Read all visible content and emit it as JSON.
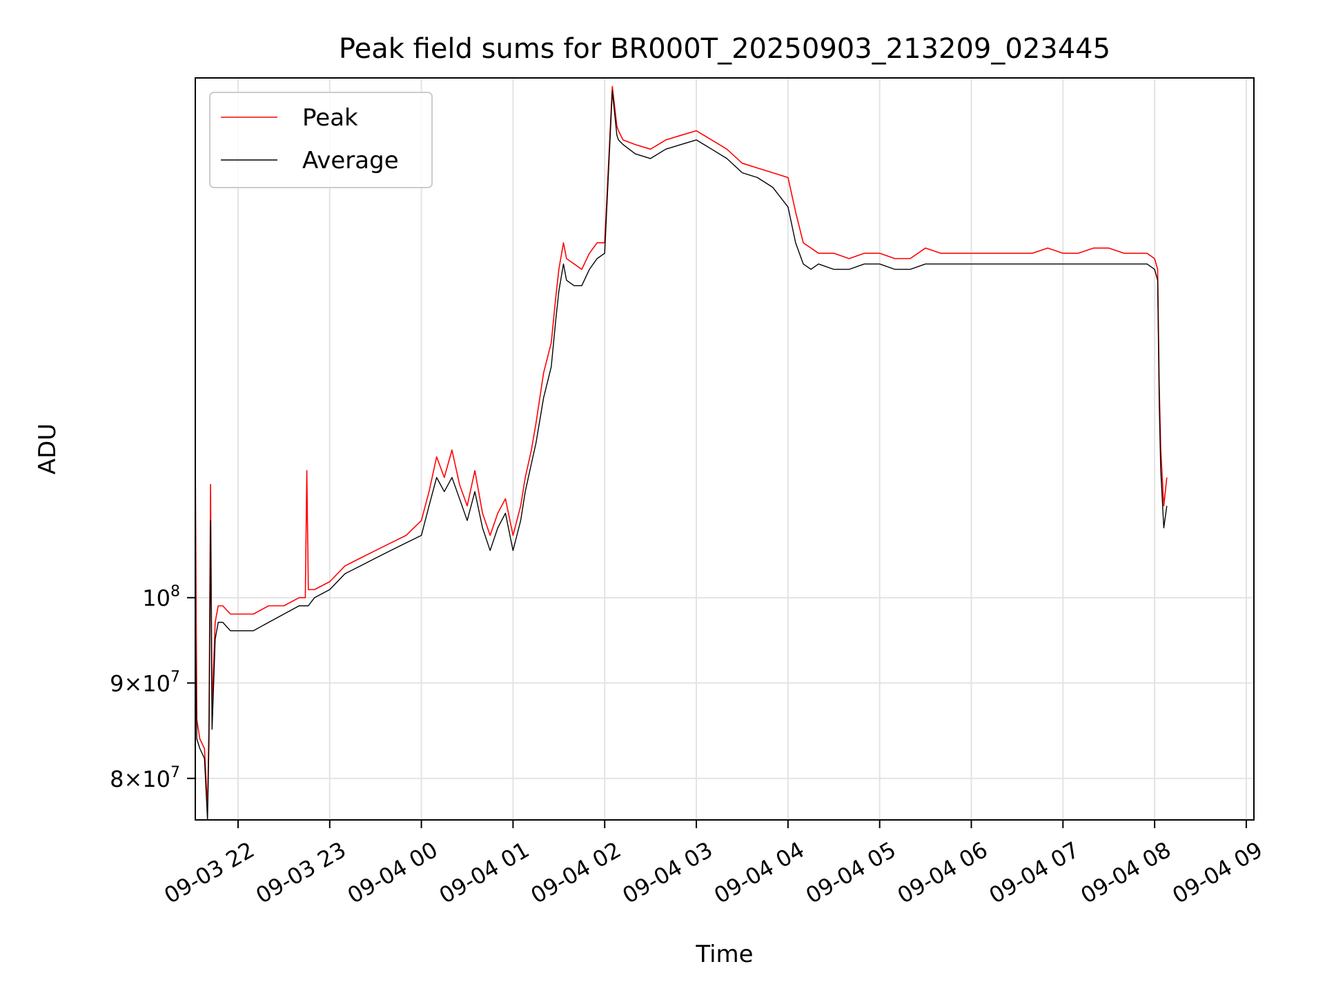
{
  "chart_data": {
    "type": "line",
    "title": "Peak field sums for BR000T_20250903_213209_023445",
    "xlabel": "Time",
    "ylabel": "ADU",
    "yscale": "log",
    "ylim": [
      76000000,
      190000000
    ],
    "xlim": [
      "2025-09-03 21:32",
      "2025-09-04 09:05"
    ],
    "grid": true,
    "legend_position": "top-left",
    "xticks": [
      {
        "t": "2025-09-03 22:00",
        "label": "09-03 22"
      },
      {
        "t": "2025-09-03 23:00",
        "label": "09-03 23"
      },
      {
        "t": "2025-09-04 00:00",
        "label": "09-04 00"
      },
      {
        "t": "2025-09-04 01:00",
        "label": "09-04 01"
      },
      {
        "t": "2025-09-04 02:00",
        "label": "09-04 02"
      },
      {
        "t": "2025-09-04 03:00",
        "label": "09-04 03"
      },
      {
        "t": "2025-09-04 04:00",
        "label": "09-04 04"
      },
      {
        "t": "2025-09-04 05:00",
        "label": "09-04 05"
      },
      {
        "t": "2025-09-04 06:00",
        "label": "09-04 06"
      },
      {
        "t": "2025-09-04 07:00",
        "label": "09-04 07"
      },
      {
        "t": "2025-09-04 08:00",
        "label": "09-04 08"
      },
      {
        "t": "2025-09-04 09:00",
        "label": "09-04 09"
      }
    ],
    "yticks": [
      {
        "value": 80000000,
        "mantissa": "8",
        "exp": "7"
      },
      {
        "value": 90000000,
        "mantissa": "9",
        "exp": "7"
      },
      {
        "value": 100000000,
        "mantissa": "",
        "exp": "8"
      }
    ],
    "series": [
      {
        "name": "Peak",
        "color": "#ff0000",
        "x": [
          "2025-09-03 21:32",
          "2025-09-03 21:33",
          "2025-09-03 21:35",
          "2025-09-03 21:38",
          "2025-09-03 21:40",
          "2025-09-03 21:41",
          "2025-09-03 21:42",
          "2025-09-03 21:43",
          "2025-09-03 21:45",
          "2025-09-03 21:47",
          "2025-09-03 21:50",
          "2025-09-03 21:55",
          "2025-09-03 22:00",
          "2025-09-03 22:10",
          "2025-09-03 22:20",
          "2025-09-03 22:30",
          "2025-09-03 22:40",
          "2025-09-03 22:44",
          "2025-09-03 22:45",
          "2025-09-03 22:46",
          "2025-09-03 22:50",
          "2025-09-03 23:00",
          "2025-09-03 23:10",
          "2025-09-03 23:20",
          "2025-09-03 23:30",
          "2025-09-03 23:40",
          "2025-09-03 23:50",
          "2025-09-04 00:00",
          "2025-09-04 00:05",
          "2025-09-04 00:10",
          "2025-09-04 00:15",
          "2025-09-04 00:20",
          "2025-09-04 00:25",
          "2025-09-04 00:30",
          "2025-09-04 00:35",
          "2025-09-04 00:40",
          "2025-09-04 00:45",
          "2025-09-04 00:50",
          "2025-09-04 00:55",
          "2025-09-04 01:00",
          "2025-09-04 01:05",
          "2025-09-04 01:08",
          "2025-09-04 01:12",
          "2025-09-04 01:15",
          "2025-09-04 01:20",
          "2025-09-04 01:25",
          "2025-09-04 01:28",
          "2025-09-04 01:30",
          "2025-09-04 01:33",
          "2025-09-04 01:35",
          "2025-09-04 01:40",
          "2025-09-04 01:45",
          "2025-09-04 01:50",
          "2025-09-04 01:55",
          "2025-09-04 02:00",
          "2025-09-04 02:05",
          "2025-09-04 02:08",
          "2025-09-04 02:09",
          "2025-09-04 02:12",
          "2025-09-04 02:20",
          "2025-09-04 02:30",
          "2025-09-04 02:40",
          "2025-09-04 02:50",
          "2025-09-04 03:00",
          "2025-09-04 03:10",
          "2025-09-04 03:20",
          "2025-09-04 03:30",
          "2025-09-04 03:40",
          "2025-09-04 03:50",
          "2025-09-04 04:00",
          "2025-09-04 04:05",
          "2025-09-04 04:10",
          "2025-09-04 04:15",
          "2025-09-04 04:20",
          "2025-09-04 04:30",
          "2025-09-04 04:40",
          "2025-09-04 04:50",
          "2025-09-04 05:00",
          "2025-09-04 05:10",
          "2025-09-04 05:20",
          "2025-09-04 05:30",
          "2025-09-04 05:40",
          "2025-09-04 05:50",
          "2025-09-04 06:00",
          "2025-09-04 06:10",
          "2025-09-04 06:20",
          "2025-09-04 06:30",
          "2025-09-04 06:40",
          "2025-09-04 06:50",
          "2025-09-04 07:00",
          "2025-09-04 07:10",
          "2025-09-04 07:20",
          "2025-09-04 07:30",
          "2025-09-04 07:40",
          "2025-09-04 07:50",
          "2025-09-04 07:55",
          "2025-09-04 08:00",
          "2025-09-04 08:02",
          "2025-09-04 08:03",
          "2025-09-04 08:04",
          "2025-09-04 08:06",
          "2025-09-04 08:08"
        ],
        "y": [
          120000000,
          86000000,
          84000000,
          83000000,
          77000000,
          86000000,
          115000000,
          87000000,
          97000000,
          99000000,
          99000000,
          98000000,
          98000000,
          98000000,
          99000000,
          99000000,
          100000000,
          100000000,
          117000000,
          101000000,
          101000000,
          102000000,
          104000000,
          105000000,
          106000000,
          107000000,
          108000000,
          110000000,
          114000000,
          119000000,
          116000000,
          120000000,
          115000000,
          112000000,
          117000000,
          111000000,
          108000000,
          111000000,
          113000000,
          108000000,
          112000000,
          116000000,
          120000000,
          124000000,
          132000000,
          137000000,
          145000000,
          150000000,
          155000000,
          152000000,
          151000000,
          150000000,
          153000000,
          155000000,
          155000000,
          188000000,
          179000000,
          178000000,
          176000000,
          175000000,
          174000000,
          176000000,
          177000000,
          178000000,
          176000000,
          174000000,
          171000000,
          170000000,
          169000000,
          168000000,
          161000000,
          155000000,
          154000000,
          153000000,
          153000000,
          152000000,
          153000000,
          153000000,
          152000000,
          152000000,
          154000000,
          153000000,
          153000000,
          153000000,
          153000000,
          153000000,
          153000000,
          153000000,
          154000000,
          153000000,
          153000000,
          154000000,
          154000000,
          153000000,
          153000000,
          153000000,
          152000000,
          150000000,
          130000000,
          120000000,
          112000000,
          116000000
        ]
      },
      {
        "name": "Average",
        "color": "#000000",
        "x": [
          "2025-09-03 21:32",
          "2025-09-03 21:33",
          "2025-09-03 21:35",
          "2025-09-03 21:38",
          "2025-09-03 21:40",
          "2025-09-03 21:41",
          "2025-09-03 21:42",
          "2025-09-03 21:43",
          "2025-09-03 21:45",
          "2025-09-03 21:47",
          "2025-09-03 21:50",
          "2025-09-03 21:55",
          "2025-09-03 22:00",
          "2025-09-03 22:10",
          "2025-09-03 22:20",
          "2025-09-03 22:30",
          "2025-09-03 22:40",
          "2025-09-03 22:44",
          "2025-09-03 22:45",
          "2025-09-03 22:46",
          "2025-09-03 22:50",
          "2025-09-03 23:00",
          "2025-09-03 23:10",
          "2025-09-03 23:20",
          "2025-09-03 23:30",
          "2025-09-03 23:40",
          "2025-09-03 23:50",
          "2025-09-04 00:00",
          "2025-09-04 00:05",
          "2025-09-04 00:10",
          "2025-09-04 00:15",
          "2025-09-04 00:20",
          "2025-09-04 00:25",
          "2025-09-04 00:30",
          "2025-09-04 00:35",
          "2025-09-04 00:40",
          "2025-09-04 00:45",
          "2025-09-04 00:50",
          "2025-09-04 00:55",
          "2025-09-04 01:00",
          "2025-09-04 01:05",
          "2025-09-04 01:08",
          "2025-09-04 01:12",
          "2025-09-04 01:15",
          "2025-09-04 01:20",
          "2025-09-04 01:25",
          "2025-09-04 01:28",
          "2025-09-04 01:30",
          "2025-09-04 01:33",
          "2025-09-04 01:35",
          "2025-09-04 01:40",
          "2025-09-04 01:45",
          "2025-09-04 01:50",
          "2025-09-04 01:55",
          "2025-09-04 02:00",
          "2025-09-04 02:05",
          "2025-09-04 02:08",
          "2025-09-04 02:09",
          "2025-09-04 02:12",
          "2025-09-04 02:20",
          "2025-09-04 02:30",
          "2025-09-04 02:40",
          "2025-09-04 02:50",
          "2025-09-04 03:00",
          "2025-09-04 03:10",
          "2025-09-04 03:20",
          "2025-09-04 03:30",
          "2025-09-04 03:40",
          "2025-09-04 03:50",
          "2025-09-04 04:00",
          "2025-09-04 04:05",
          "2025-09-04 04:10",
          "2025-09-04 04:15",
          "2025-09-04 04:20",
          "2025-09-04 04:30",
          "2025-09-04 04:40",
          "2025-09-04 04:50",
          "2025-09-04 05:00",
          "2025-09-04 05:10",
          "2025-09-04 05:20",
          "2025-09-04 05:30",
          "2025-09-04 05:40",
          "2025-09-04 05:50",
          "2025-09-04 06:00",
          "2025-09-04 06:10",
          "2025-09-04 06:20",
          "2025-09-04 06:30",
          "2025-09-04 06:40",
          "2025-09-04 06:50",
          "2025-09-04 07:00",
          "2025-09-04 07:10",
          "2025-09-04 07:20",
          "2025-09-04 07:30",
          "2025-09-04 07:40",
          "2025-09-04 07:50",
          "2025-09-04 07:55",
          "2025-09-04 08:00",
          "2025-09-04 08:02",
          "2025-09-04 08:03",
          "2025-09-04 08:04",
          "2025-09-04 08:06",
          "2025-09-04 08:08"
        ],
        "y": [
          98000000,
          84000000,
          83000000,
          82000000,
          76000000,
          84000000,
          110000000,
          85000000,
          95000000,
          97000000,
          97000000,
          96000000,
          96000000,
          96000000,
          97000000,
          98000000,
          99000000,
          99000000,
          99000000,
          99000000,
          100000000,
          101000000,
          103000000,
          104000000,
          105000000,
          106000000,
          107000000,
          108000000,
          112000000,
          116000000,
          114000000,
          116000000,
          113000000,
          110000000,
          114000000,
          109000000,
          106000000,
          109000000,
          111000000,
          106000000,
          110000000,
          114000000,
          118000000,
          121000000,
          128000000,
          133000000,
          141000000,
          146000000,
          151000000,
          148000000,
          147000000,
          147000000,
          150000000,
          152000000,
          153000000,
          187000000,
          177000000,
          176000000,
          175000000,
          173000000,
          172000000,
          174000000,
          175000000,
          176000000,
          174000000,
          172000000,
          169000000,
          168000000,
          166000000,
          162000000,
          155000000,
          151000000,
          150000000,
          151000000,
          150000000,
          150000000,
          151000000,
          151000000,
          150000000,
          150000000,
          151000000,
          151000000,
          151000000,
          151000000,
          151000000,
          151000000,
          151000000,
          151000000,
          151000000,
          151000000,
          151000000,
          151000000,
          151000000,
          151000000,
          151000000,
          151000000,
          150000000,
          148000000,
          127000000,
          117000000,
          109000000,
          112000000
        ]
      }
    ]
  }
}
